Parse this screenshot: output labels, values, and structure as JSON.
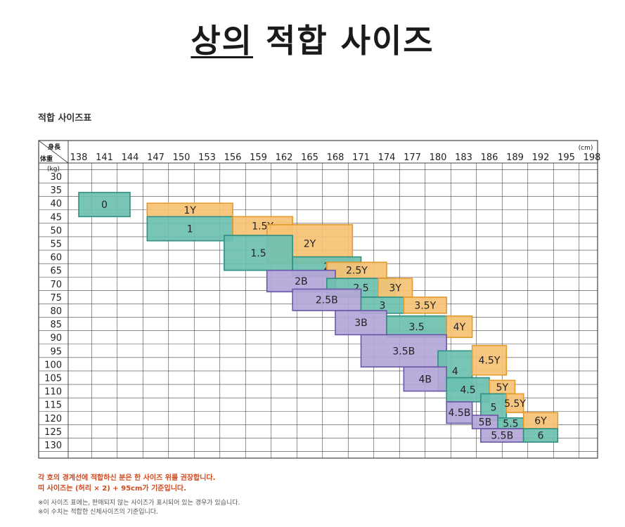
{
  "title": {
    "part1": "상의",
    "part2": " 적합 사이즈"
  },
  "table_caption": "적합 사이즈표",
  "axis": {
    "height_header": "身長",
    "weight_header": "体重",
    "height_unit": "(cm)",
    "weight_unit": "(kg)",
    "heights": [
      "138",
      "141",
      "144",
      "147",
      "150",
      "153",
      "156",
      "159",
      "162",
      "165",
      "168",
      "171",
      "174",
      "177",
      "180",
      "183",
      "186",
      "189",
      "192",
      "195",
      "198"
    ],
    "weights": [
      "30",
      "35",
      "40",
      "45",
      "50",
      "55",
      "60",
      "65",
      "70",
      "75",
      "80",
      "85",
      "90",
      "95",
      "100",
      "105",
      "110",
      "115",
      "120",
      "125",
      "130"
    ]
  },
  "colors": {
    "green": "#6cc0b0",
    "orange": "#f7c274",
    "purple": "#b3a6d8",
    "green_border": "#2f8f82",
    "orange_border": "#e39a2e",
    "purple_border": "#6a57a8",
    "grid": "#444444"
  },
  "chart_data": {
    "type": "table",
    "x_label": "身長 (cm)",
    "y_label": "体重 (kg)",
    "sizes": [
      {
        "label": "0",
        "group": "green",
        "height_range": [
          138,
          144
        ],
        "weight_range": [
          36,
          45
        ]
      },
      {
        "label": "1Y",
        "group": "orange",
        "height_range": [
          146,
          156
        ],
        "weight_range": [
          40,
          45
        ]
      },
      {
        "label": "1",
        "group": "green",
        "height_range": [
          146,
          156
        ],
        "weight_range": [
          45,
          54
        ]
      },
      {
        "label": "1.5Y",
        "group": "orange",
        "height_range": [
          156,
          163
        ],
        "weight_range": [
          45,
          52
        ]
      },
      {
        "label": "2Y",
        "group": "orange",
        "height_range": [
          160,
          170
        ],
        "weight_range": [
          48,
          62
        ]
      },
      {
        "label": "1.5",
        "group": "green",
        "height_range": [
          155,
          163
        ],
        "weight_range": [
          52,
          65
        ]
      },
      {
        "label": "2",
        "group": "green",
        "height_range": [
          163,
          171
        ],
        "weight_range": [
          60,
          67
        ]
      },
      {
        "label": "2.5Y",
        "group": "orange",
        "height_range": [
          167,
          174
        ],
        "weight_range": [
          62,
          68
        ]
      },
      {
        "label": "2B",
        "group": "purple",
        "height_range": [
          160,
          168
        ],
        "weight_range": [
          65,
          73
        ]
      },
      {
        "label": "2.5",
        "group": "green",
        "height_range": [
          167,
          175
        ],
        "weight_range": [
          68,
          75
        ]
      },
      {
        "label": "3Y",
        "group": "orange",
        "height_range": [
          173,
          177
        ],
        "weight_range": [
          68,
          75
        ]
      },
      {
        "label": "2.5B",
        "group": "purple",
        "height_range": [
          163,
          171
        ],
        "weight_range": [
          72,
          80
        ]
      },
      {
        "label": "3",
        "group": "green",
        "height_range": [
          171,
          176
        ],
        "weight_range": [
          75,
          81
        ]
      },
      {
        "label": "3.5Y",
        "group": "orange",
        "height_range": [
          176,
          181
        ],
        "weight_range": [
          75,
          81
        ]
      },
      {
        "label": "3B",
        "group": "purple",
        "height_range": [
          168,
          174
        ],
        "weight_range": [
          80,
          89
        ]
      },
      {
        "label": "3.5",
        "group": "green",
        "height_range": [
          174,
          181
        ],
        "weight_range": [
          82,
          90
        ]
      },
      {
        "label": "4Y",
        "group": "orange",
        "height_range": [
          181,
          184
        ],
        "weight_range": [
          82,
          90
        ]
      },
      {
        "label": "3.5B",
        "group": "purple",
        "height_range": [
          171,
          181
        ],
        "weight_range": [
          89,
          101
        ]
      },
      {
        "label": "4",
        "group": "green",
        "height_range": [
          180,
          184
        ],
        "weight_range": [
          95,
          110
        ]
      },
      {
        "label": "4.5Y",
        "group": "orange",
        "height_range": [
          184,
          188
        ],
        "weight_range": [
          93,
          104
        ]
      },
      {
        "label": "4B",
        "group": "purple",
        "height_range": [
          176,
          181
        ],
        "weight_range": [
          101,
          110
        ]
      },
      {
        "label": "4.5",
        "group": "green",
        "height_range": [
          181,
          186
        ],
        "weight_range": [
          105,
          114
        ]
      },
      {
        "label": "5Y",
        "group": "orange",
        "height_range": [
          186,
          189
        ],
        "weight_range": [
          106,
          111
        ]
      },
      {
        "label": "5",
        "group": "green",
        "height_range": [
          185,
          188
        ],
        "weight_range": [
          111,
          121
        ]
      },
      {
        "label": "5.5Y",
        "group": "orange",
        "height_range": [
          188,
          190
        ],
        "weight_range": [
          111,
          118
        ]
      },
      {
        "label": "4.5B",
        "group": "purple",
        "height_range": [
          181,
          184
        ],
        "weight_range": [
          114,
          122
        ]
      },
      {
        "label": "5B",
        "group": "purple",
        "height_range": [
          184,
          187
        ],
        "weight_range": [
          119,
          124
        ]
      },
      {
        "label": "5.5",
        "group": "green",
        "height_range": [
          187,
          190
        ],
        "weight_range": [
          120,
          124
        ]
      },
      {
        "label": "6Y",
        "group": "orange",
        "height_range": [
          190,
          194
        ],
        "weight_range": [
          118,
          124
        ]
      },
      {
        "label": "5.5B",
        "group": "purple",
        "height_range": [
          185,
          190
        ],
        "weight_range": [
          124,
          129
        ]
      },
      {
        "label": "6",
        "group": "green",
        "height_range": [
          190,
          194
        ],
        "weight_range": [
          124,
          129
        ]
      }
    ]
  },
  "notes": [
    "각 호의 경계선에 적합하신 분은 한 사이즈 위를 권장합니다.",
    "띠 사이즈는 (허리 × 2) + 95cm가 기준입니다.",
    "※이 사이즈 표에는, 판매되지 않는 사이즈가 표시되어 있는 경우가 있습니다.",
    "※이 수치는 적합한 신체사이즈의 기준입니다."
  ]
}
